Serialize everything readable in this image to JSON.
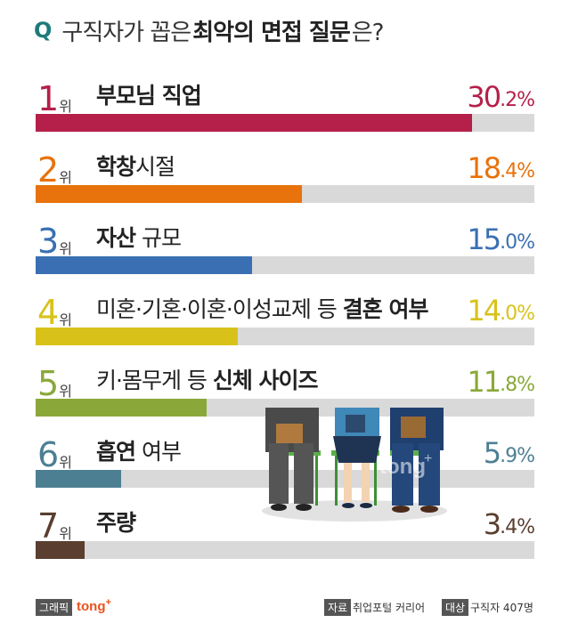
{
  "header": {
    "q": "Q",
    "part1": "구직자가 꼽은",
    "bold": "최악의 면접 질문",
    "part2": "은?"
  },
  "chart_data": {
    "type": "bar",
    "orientation": "horizontal",
    "unit": "%",
    "rank_suffix": "위",
    "xlim": [
      0,
      34.5
    ],
    "series": [
      {
        "rank": "1",
        "label_normal": "",
        "label_bold": "부모님 직업",
        "label_after": "",
        "value": 30.2,
        "value_int": "30",
        "value_dec": ".2%",
        "color": "#b5204a"
      },
      {
        "rank": "2",
        "label_normal": "",
        "label_bold": "학창",
        "label_after": "시절",
        "value": 18.4,
        "value_int": "18",
        "value_dec": ".4%",
        "color": "#e8720c"
      },
      {
        "rank": "3",
        "label_normal": "",
        "label_bold": "자산",
        "label_after": " 규모",
        "value": 15.0,
        "value_int": "15",
        "value_dec": ".0%",
        "color": "#3a70b3"
      },
      {
        "rank": "4",
        "label_normal": "미혼·기혼·이혼·이성교제 등 ",
        "label_bold": "결혼 여부",
        "label_after": "",
        "value": 14.0,
        "value_int": "14",
        "value_dec": ".0%",
        "color": "#d8c21a"
      },
      {
        "rank": "5",
        "label_normal": "키·몸무게 등 ",
        "label_bold": "신체 사이즈",
        "label_after": "",
        "value": 11.8,
        "value_int": "11",
        "value_dec": ".8%",
        "color": "#8aa83a"
      },
      {
        "rank": "6",
        "label_normal": "",
        "label_bold": "흡연",
        "label_after": " 여부",
        "value": 5.9,
        "value_int": "5",
        "value_dec": ".9%",
        "color": "#4d7f93"
      },
      {
        "rank": "7",
        "label_normal": "",
        "label_bold": "주량",
        "label_after": "",
        "value": 3.4,
        "value_int": "3",
        "value_dec": ".4%",
        "color": "#5a3e30"
      }
    ]
  },
  "watermark": {
    "text": "tong",
    "sup": "+"
  },
  "footer": {
    "graphic_tag": "그래픽",
    "brand": "tong",
    "brand_sup": "+",
    "source_tag": "자료",
    "source": "취업포털 커리어",
    "target_tag": "대상",
    "target": "구직자 407명"
  },
  "colors": {
    "title_q": "#1e7a7a",
    "track": "#d9d9d9",
    "brand": "#e8521c"
  }
}
